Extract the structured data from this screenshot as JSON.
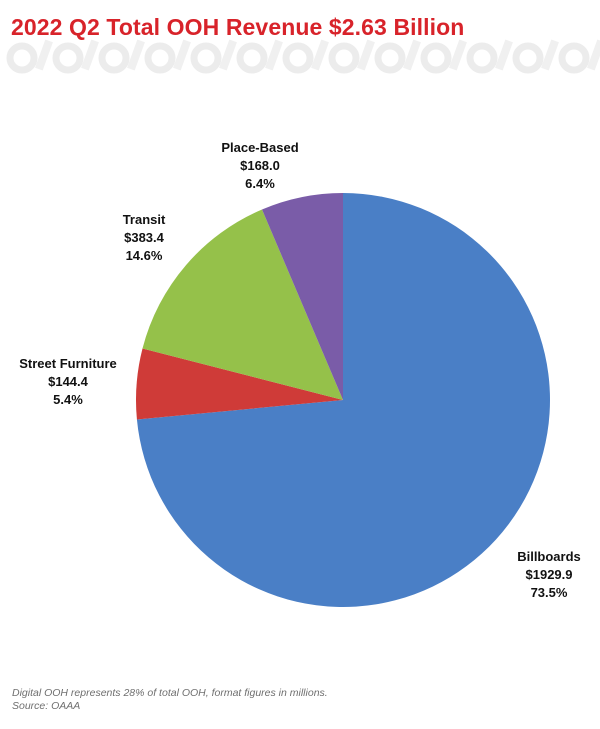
{
  "header": {
    "title": "2022 Q2 Total OOH Revenue $2.63 Billion"
  },
  "chart_data": {
    "type": "pie",
    "slices": [
      {
        "name": "Billboards",
        "value_label": "$1929.9",
        "percent_label": "73.5%",
        "value": 1929.9,
        "percent": 73.5,
        "color": "#4a7fc6"
      },
      {
        "name": "Street Furniture",
        "value_label": "$144.4",
        "percent_label": "5.4%",
        "value": 144.4,
        "percent": 5.4,
        "color": "#cf3b38"
      },
      {
        "name": "Transit",
        "value_label": "$383.4",
        "percent_label": "14.6%",
        "value": 383.4,
        "percent": 14.6,
        "color": "#95c14a"
      },
      {
        "name": "Place-Based",
        "value_label": "$168.0",
        "percent_label": "6.4%",
        "value": 168.0,
        "percent": 6.4,
        "color": "#7a5ca8"
      }
    ]
  },
  "footnote": {
    "line1": "Digital OOH represents 28% of total OOH, format figures in millions.",
    "line2": "Source: OAAA"
  }
}
